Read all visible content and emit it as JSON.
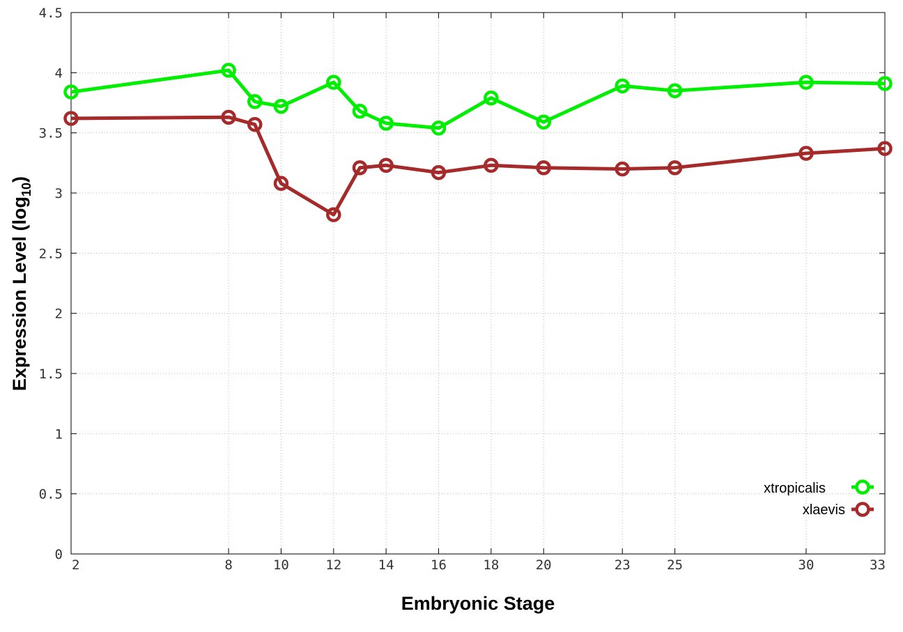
{
  "chart_data": {
    "type": "line",
    "title": "",
    "xlabel": "Embryonic Stage",
    "ylabel": "Expression Level (log",
    "ylabel_sub": "10",
    "ylabel_suffix": ")",
    "xlim": [
      2,
      33
    ],
    "ylim": [
      0,
      4.5
    ],
    "xticks": [
      2,
      8,
      10,
      12,
      14,
      16,
      18,
      20,
      23,
      25,
      30,
      33
    ],
    "xtick_labels": [
      "2",
      "8",
      "10",
      "12",
      "14",
      "16",
      "18",
      "20",
      "23",
      "25",
      "30",
      "33"
    ],
    "yticks": [
      0,
      0.5,
      1,
      1.5,
      2,
      2.5,
      3,
      3.5,
      4,
      4.5
    ],
    "ytick_labels": [
      "0",
      "0.5",
      "1",
      "1.5",
      "2",
      "2.5",
      "3",
      "3.5",
      "4",
      "4.5"
    ],
    "grid": true,
    "legend_position": "bottom-right",
    "x": [
      2,
      8,
      9,
      10,
      12,
      13,
      14,
      16,
      18,
      20,
      23,
      25,
      30,
      33
    ],
    "series": [
      {
        "name": "xtropicalis",
        "color": "#00ee00",
        "values": [
          3.84,
          4.02,
          3.76,
          3.72,
          3.92,
          3.68,
          3.58,
          3.54,
          3.79,
          3.59,
          3.89,
          3.85,
          3.92,
          3.91
        ]
      },
      {
        "name": "xlaevis",
        "color": "#a52a2a",
        "values": [
          3.62,
          3.63,
          3.57,
          3.08,
          2.82,
          3.21,
          3.23,
          3.17,
          3.23,
          3.21,
          3.2,
          3.21,
          3.33,
          3.37
        ]
      }
    ]
  }
}
